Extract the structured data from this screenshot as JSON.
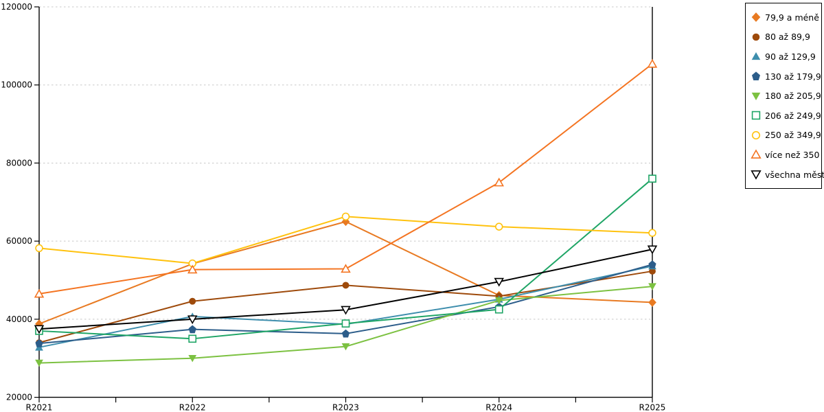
{
  "chart_data": {
    "type": "line",
    "title": "",
    "xlabel": "",
    "ylabel": "",
    "categories": [
      "R2021",
      "R2022",
      "R2023",
      "R2024",
      "R2025"
    ],
    "ylim": [
      20000,
      120000
    ],
    "y_ticks": [
      20000,
      40000,
      60000,
      80000,
      100000,
      120000
    ],
    "y_tick_labels": [
      "20000",
      "40000",
      "60000",
      "80000",
      "100000",
      "120000"
    ],
    "grid": "horizontal-dashed",
    "legend_position": "right",
    "minor_x_ticks_between_years": true,
    "series": [
      {
        "name": "79,9 a méně",
        "color": "#E87A22",
        "marker": "diamond",
        "values": [
          38800,
          54200,
          65000,
          46100,
          44300
        ]
      },
      {
        "name": "80 až 89,9",
        "color": "#9E4A0B",
        "marker": "circle",
        "values": [
          34000,
          44600,
          48700,
          45900,
          52300
        ]
      },
      {
        "name": "90 až 129,9",
        "color": "#3E8EAD",
        "marker": "triangle-up",
        "values": [
          32800,
          40700,
          38700,
          45100,
          53600
        ]
      },
      {
        "name": "130 až 179,9",
        "color": "#2C5D8A",
        "marker": "pentagon",
        "values": [
          33800,
          37400,
          36300,
          43200,
          54000
        ]
      },
      {
        "name": "180 až 205,9",
        "color": "#7CC141",
        "marker": "triangle-down",
        "values": [
          28800,
          30000,
          33000,
          44800,
          48400
        ]
      },
      {
        "name": "206 až 249,9",
        "color": "#1FA566",
        "marker": "square-hollow",
        "values": [
          37000,
          35000,
          38900,
          42500,
          76000
        ]
      },
      {
        "name": "250 až 349,9",
        "color": "#FFC20E",
        "marker": "circle-hollow",
        "values": [
          58200,
          54300,
          66300,
          63700,
          62100
        ]
      },
      {
        "name": "více než 350",
        "color": "#F47421",
        "marker": "triangle-up-hollow",
        "values": [
          46500,
          52700,
          52900,
          75000,
          105400
        ]
      },
      {
        "name": "všechna města",
        "color": "#000000",
        "marker": "triangle-down-hollow",
        "values": [
          37500,
          40000,
          42400,
          49600,
          57900
        ]
      }
    ],
    "colors": {
      "gridline": "#c8c8c8",
      "axis": "#000000",
      "background": "#ffffff"
    }
  }
}
